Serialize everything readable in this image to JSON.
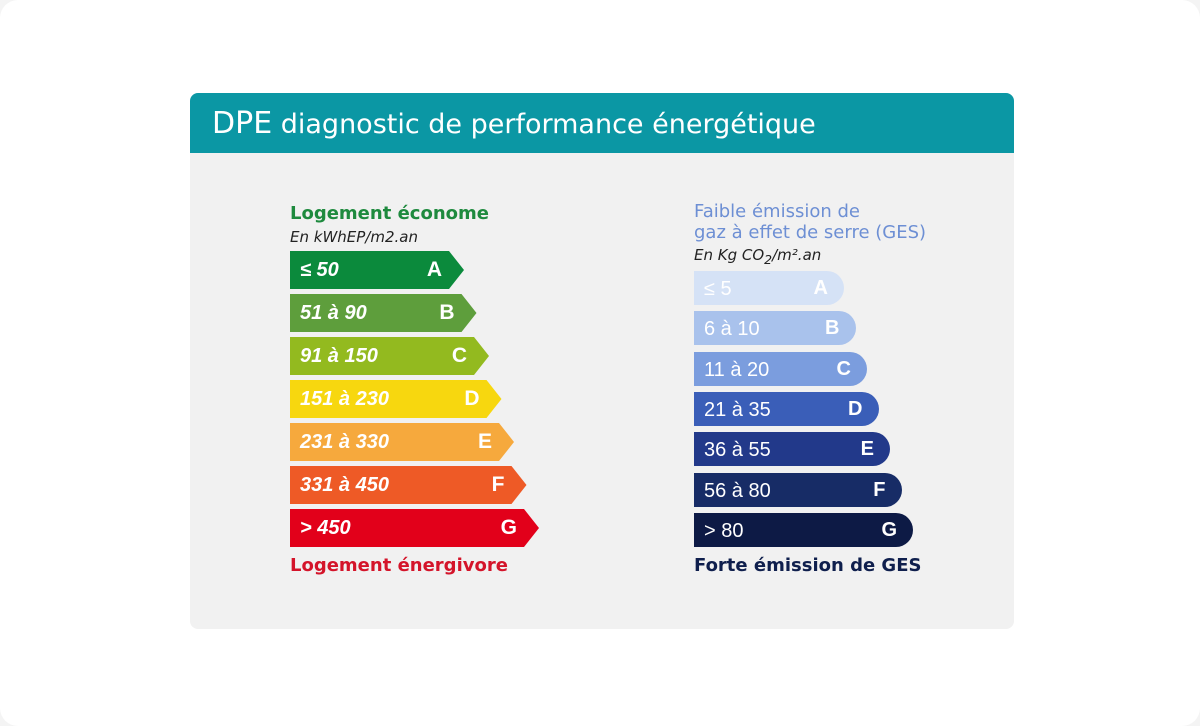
{
  "card": {
    "title_abbr": "DPE",
    "title_rest": "diagnostic de performance énergétique"
  },
  "energy": {
    "heading": "Logement économe",
    "unit": "En kWhEP/m2.an",
    "bars": [
      {
        "range": "≤ 50",
        "grade": "A",
        "color": "#0b8a3c"
      },
      {
        "range": "51 à 90",
        "grade": "B",
        "color": "#5e9e3c"
      },
      {
        "range": "91 à 150",
        "grade": "C",
        "color": "#93ba1f"
      },
      {
        "range": "151 à 230",
        "grade": "D",
        "color": "#f7d70f"
      },
      {
        "range": "231 à 330",
        "grade": "E",
        "color": "#f6a93d"
      },
      {
        "range": "331 à 450",
        "grade": "F",
        "color": "#ee5a26"
      },
      {
        "range": "> 450",
        "grade": "G",
        "color": "#e2001a"
      }
    ],
    "footer": "Logement énergivore"
  },
  "ges": {
    "heading_line1": "Faible émission de",
    "heading_line2": "gaz à effet de serre (GES)",
    "unit_prefix": "En Kg CO",
    "unit_sub": "2",
    "unit_suffix": "/m².an",
    "bars": [
      {
        "range": "≤ 5",
        "grade": "A",
        "color": "#d5e2f6"
      },
      {
        "range": "6 à 10",
        "grade": "B",
        "color": "#a9c2ec"
      },
      {
        "range": "11 à 20",
        "grade": "C",
        "color": "#7b9dde"
      },
      {
        "range": "21 à 35",
        "grade": "D",
        "color": "#3a5eb8"
      },
      {
        "range": "36 à 55",
        "grade": "E",
        "color": "#22398a"
      },
      {
        "range": "56 à 80",
        "grade": "F",
        "color": "#172c66"
      },
      {
        "range": "> 80",
        "grade": "G",
        "color": "#0d1a45"
      }
    ],
    "footer": "Forte émission de GES"
  }
}
